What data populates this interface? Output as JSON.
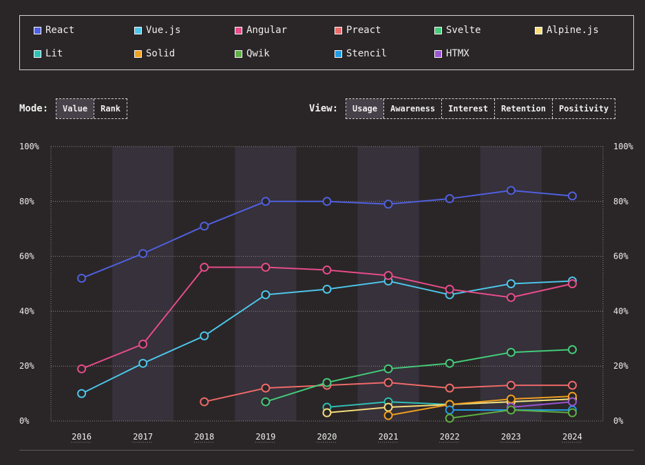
{
  "legend": [
    {
      "label": "React",
      "color": "#5060e0"
    },
    {
      "label": "Vue.js",
      "color": "#4dc6ea"
    },
    {
      "label": "Angular",
      "color": "#e84c8b"
    },
    {
      "label": "Preact",
      "color": "#f06a6a"
    },
    {
      "label": "Svelte",
      "color": "#44cc7a"
    },
    {
      "label": "Alpine.js",
      "color": "#f7dd7c"
    },
    {
      "label": "Lit",
      "color": "#2ec0b5"
    },
    {
      "label": "Solid",
      "color": "#f0a020"
    },
    {
      "label": "Qwik",
      "color": "#5fb043"
    },
    {
      "label": "Stencil",
      "color": "#1f9ce8"
    },
    {
      "label": "HTMX",
      "color": "#9a55d4"
    }
  ],
  "mode": {
    "label": "Mode:",
    "options": [
      "Value",
      "Rank"
    ],
    "active": "Value"
  },
  "view": {
    "label": "View:",
    "options": [
      "Usage",
      "Awareness",
      "Interest",
      "Retention",
      "Positivity"
    ],
    "active": "Usage"
  },
  "chart_data": {
    "type": "line",
    "x": [
      "2016",
      "2017",
      "2018",
      "2019",
      "2020",
      "2021",
      "2022",
      "2023",
      "2024"
    ],
    "ylim": [
      0,
      100
    ],
    "yticks": [
      "0%",
      "20%",
      "40%",
      "60%",
      "80%",
      "100%"
    ],
    "grid": true,
    "series": [
      {
        "name": "React",
        "color": "#5060e0",
        "values": [
          52,
          61,
          71,
          80,
          80,
          79,
          81,
          84,
          82
        ]
      },
      {
        "name": "Vue.js",
        "color": "#4dc6ea",
        "values": [
          10,
          21,
          31,
          46,
          48,
          51,
          46,
          50,
          51
        ]
      },
      {
        "name": "Angular",
        "color": "#e84c8b",
        "values": [
          19,
          28,
          56,
          56,
          55,
          53,
          48,
          45,
          50
        ]
      },
      {
        "name": "Preact",
        "color": "#f06a6a",
        "values": [
          null,
          null,
          7,
          12,
          13,
          14,
          12,
          13,
          13
        ]
      },
      {
        "name": "Svelte",
        "color": "#44cc7a",
        "values": [
          null,
          null,
          null,
          7,
          14,
          19,
          21,
          25,
          26
        ]
      },
      {
        "name": "Lit",
        "color": "#2ec0b5",
        "values": [
          null,
          null,
          null,
          null,
          5,
          7,
          6,
          7,
          8
        ]
      },
      {
        "name": "Alpine.js",
        "color": "#f7dd7c",
        "values": [
          null,
          null,
          null,
          null,
          3,
          5,
          6,
          7,
          8
        ]
      },
      {
        "name": "Solid",
        "color": "#f0a020",
        "values": [
          null,
          null,
          null,
          null,
          null,
          2,
          6,
          8,
          9
        ]
      },
      {
        "name": "Stencil",
        "color": "#1f9ce8",
        "values": [
          null,
          null,
          null,
          null,
          null,
          null,
          4,
          4,
          4
        ]
      },
      {
        "name": "HTMX",
        "color": "#9a55d4",
        "values": [
          null,
          null,
          null,
          null,
          null,
          null,
          null,
          5,
          7
        ]
      },
      {
        "name": "Qwik",
        "color": "#5fb043",
        "values": [
          null,
          null,
          null,
          null,
          null,
          null,
          1,
          4,
          3
        ]
      }
    ]
  }
}
